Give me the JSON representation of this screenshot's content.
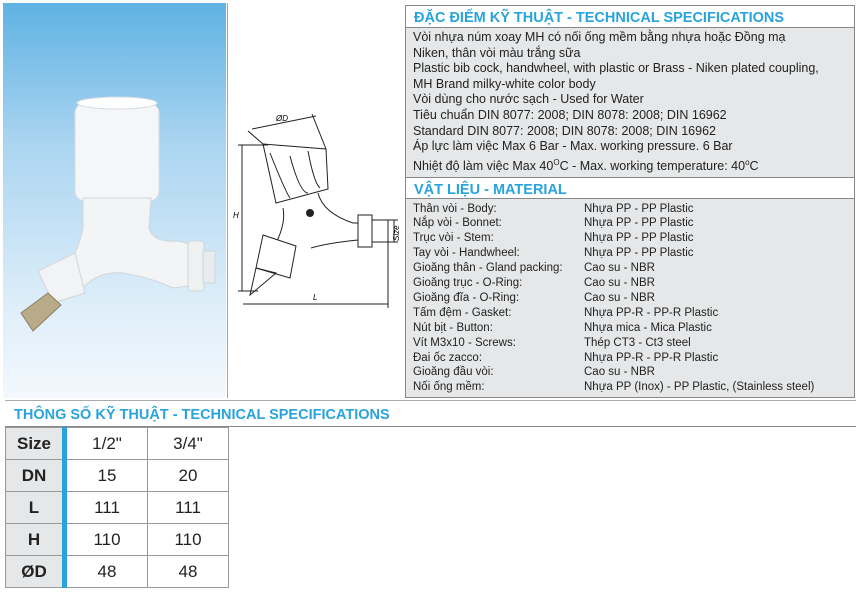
{
  "specs": {
    "title": "ĐẶC ĐIỂM KỸ THUẬT - TECHNICAL SPECIFICATIONS",
    "lines": [
      "Vòi nhựa núm xoay MH có nối ống mềm bằng nhựa hoặc Đồng mạ",
      "Niken, thân vòi màu trắng sữa",
      "Plastic bib cock, handwheel, with plastic or Brass - Niken plated coupling,",
      "MH Brand milky-white color  body",
      "Vòi dùng cho nước sạch - Used for Water",
      "Tiêu chuẩn DIN 8077: 2008; DIN 8078: 2008; DIN 16962",
      "Standard DIN 8077: 2008; DIN 8078: 2008; DIN 16962",
      "Áp lực làm việc Max 6 Bar - Max. working pressure. 6 Bar"
    ],
    "temp": {
      "a": "Nhiệt độ làm việc Max 40",
      "sup1": "O",
      "b": "C - Max. working temperature: 40",
      "sup2": "o",
      "c": "C"
    }
  },
  "material": {
    "title": "VẬT LIỆU - MATERIAL",
    "rows": [
      {
        "k": "Thân vòi - Body:",
        "v": "Nhựa PP - PP Plastic"
      },
      {
        "k": "Nắp vòi - Bonnet:",
        "v": "Nhựa PP - PP Plastic"
      },
      {
        "k": "Trục vòi - Stem:",
        "v": "Nhựa PP - PP Plastic"
      },
      {
        "k": "Tay vòi - Handwheel:",
        "v": "Nhựa PP - PP Plastic"
      },
      {
        "k": "Gioăng thân - Gland packing:",
        "v": "Cao su - NBR"
      },
      {
        "k": "Gioăng trục - O-Ring:",
        "v": "Cao su - NBR"
      },
      {
        "k": "Gioăng đĩa - O-Ring:",
        "v": "Cao su - NBR"
      },
      {
        "k": "Tấm đệm - Gasket:",
        "v": "Nhựa PP-R - PP-R Plastic"
      },
      {
        "k": "Nút bịt - Button:",
        "v": "Nhựa mica - Mica Plastic"
      },
      {
        "k": "Vít M3x10 - Screws:",
        "v": "Thép CT3 - Ct3 steel"
      },
      {
        "k": "Đai ốc zacco:",
        "v": "Nhựa PP-R - PP-R Plastic"
      },
      {
        "k": "Gioăng đầu vòi:",
        "v": "Cao su - NBR"
      },
      {
        "k": "Nối ống mềm:",
        "v": "Nhựa PP (Inox) - PP Plastic, (Stainless steel)"
      }
    ]
  },
  "diagram": {
    "d_label": "ØD",
    "h_label": "H",
    "l_label": "L",
    "size_label": "Size"
  },
  "table": {
    "title": "THÔNG SỐ KỸ THUẬT - TECHNICAL SPECIFICATIONS",
    "rows": [
      {
        "k": "Size",
        "a": "1/2\"",
        "b": "3/4\""
      },
      {
        "k": "DN",
        "a": "15",
        "b": "20"
      },
      {
        "k": "L",
        "a": "111",
        "b": "111"
      },
      {
        "k": "H",
        "a": "110",
        "b": "110"
      },
      {
        "k": "ØD",
        "a": "48",
        "b": "48"
      }
    ]
  },
  "colors": {
    "accent": "#29a3dc",
    "panel": "#e6e7e8"
  }
}
